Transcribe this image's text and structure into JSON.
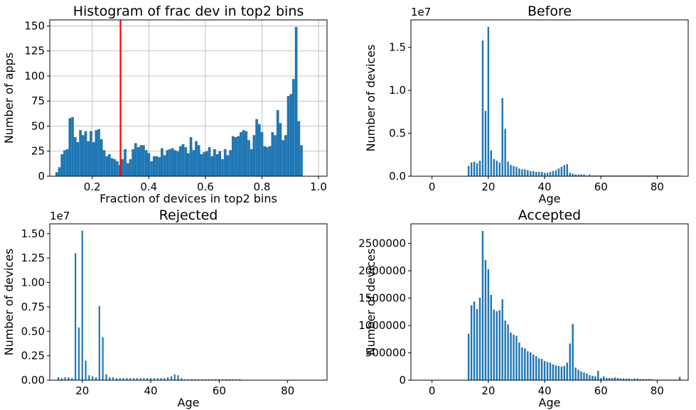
{
  "chart_data": [
    {
      "id": "hist",
      "type": "bar",
      "title": "Histogram of frac dev in top2 bins",
      "xlabel": "Fraction of devices in top2 bins",
      "ylabel": "Number of apps",
      "xlim": [
        0.05,
        1.03
      ],
      "ylim": [
        0,
        156
      ],
      "grid": true,
      "xticks": [
        0.2,
        0.4,
        0.6,
        0.8,
        1.0
      ],
      "xtick_labels": [
        "0.2",
        "0.4",
        "0.6",
        "0.8",
        "1.0"
      ],
      "yticks": [
        0,
        25,
        50,
        75,
        100,
        125,
        150
      ],
      "ytick_labels": [
        "0",
        "25",
        "50",
        "75",
        "100",
        "125",
        "150"
      ],
      "bin_start": 0.07,
      "bin_width": 0.0093,
      "values": [
        4,
        9,
        22,
        26,
        27,
        58,
        59,
        39,
        34,
        46,
        41,
        45,
        35,
        45,
        34,
        46,
        47,
        37,
        26,
        20,
        22,
        18,
        17,
        15,
        11,
        17,
        27,
        13,
        17,
        27,
        33,
        29,
        31,
        31,
        26,
        23,
        15,
        20,
        20,
        19,
        28,
        21,
        26,
        27,
        28,
        26,
        25,
        30,
        32,
        29,
        23,
        39,
        26,
        35,
        31,
        22,
        24,
        25,
        29,
        20,
        27,
        22,
        25,
        17,
        27,
        21,
        26,
        40,
        39,
        40,
        44,
        46,
        45,
        36,
        27,
        41,
        57,
        52,
        44,
        30,
        29,
        30,
        44,
        41,
        66,
        53,
        36,
        41,
        80,
        82,
        97,
        149,
        55,
        31
      ],
      "vline": {
        "x": 0.3,
        "color": "#ff0000"
      },
      "color": "#1f77b4"
    },
    {
      "id": "before",
      "type": "bar",
      "title": "Before",
      "xlabel": "Age",
      "ylabel": "Number of devices",
      "offset_text": "1e7",
      "xlim": [
        -7.5,
        91
      ],
      "ylim": [
        0,
        1.82
      ],
      "xticks": [
        0,
        20,
        40,
        60,
        80
      ],
      "xtick_labels": [
        "0",
        "20",
        "40",
        "60",
        "80"
      ],
      "yticks": [
        0.0,
        0.5,
        1.0,
        1.5
      ],
      "ytick_labels": [
        "0.0",
        "0.5",
        "1.0",
        "1.5"
      ],
      "x_start": 13,
      "x_step": 1,
      "values": [
        0.12,
        0.16,
        0.17,
        0.15,
        0.18,
        1.58,
        0.76,
        1.74,
        0.3,
        0.2,
        0.18,
        0.16,
        0.91,
        0.55,
        0.17,
        0.13,
        0.12,
        0.11,
        0.09,
        0.08,
        0.08,
        0.07,
        0.06,
        0.06,
        0.05,
        0.05,
        0.05,
        0.04,
        0.04,
        0.05,
        0.06,
        0.07,
        0.09,
        0.11,
        0.13,
        0.14,
        0.04,
        0.03,
        0.02,
        0.02,
        0.02,
        0.02,
        0.01,
        0.02,
        0.01,
        0.01,
        0.01,
        0.01,
        0.01,
        0.01,
        0.01,
        0.01,
        0.01,
        0.01,
        0.01,
        0.01,
        0.01,
        0.01,
        0.01,
        0.01,
        0.01,
        0.01,
        0.01,
        0.01,
        0.01,
        0.01,
        0.01,
        0.01,
        0.01,
        0.01,
        0.01,
        0.01,
        0.01,
        0.01,
        0.01,
        0.01
      ],
      "bar_width": 0.62,
      "color": "#1f77b4"
    },
    {
      "id": "rejected",
      "type": "bar",
      "title": "Rejected",
      "xlabel": "Age",
      "ylabel": "Number of devices",
      "offset_text": "1e7",
      "xlim": [
        10.5,
        91.5
      ],
      "ylim": [
        0,
        1.6
      ],
      "xticks": [
        20,
        40,
        60,
        80
      ],
      "xtick_labels": [
        "20",
        "40",
        "60",
        "80"
      ],
      "yticks": [
        0.0,
        0.25,
        0.5,
        0.75,
        1.0,
        1.25,
        1.5
      ],
      "ytick_labels": [
        "0.00",
        "0.25",
        "0.50",
        "0.75",
        "1.00",
        "1.25",
        "1.50"
      ],
      "x_start": 13,
      "x_step": 1,
      "values": [
        0.03,
        0.02,
        0.03,
        0.03,
        0.02,
        1.3,
        0.54,
        1.53,
        0.2,
        0.05,
        0.04,
        0.03,
        0.76,
        0.44,
        0.06,
        0.03,
        0.03,
        0.02,
        0.02,
        0.02,
        0.02,
        0.02,
        0.02,
        0.02,
        0.02,
        0.02,
        0.02,
        0.02,
        0.02,
        0.02,
        0.02,
        0.02,
        0.03,
        0.04,
        0.06,
        0.05,
        0.02,
        0.01,
        0.01,
        0.01,
        0.01,
        0.01,
        0.01,
        0.01,
        0.01,
        0.01,
        0.01,
        0.01,
        0.01,
        0.01,
        0.01,
        0.01,
        0.01,
        0.01
      ],
      "bar_width": 0.45,
      "color": "#1f77b4"
    },
    {
      "id": "accepted",
      "type": "bar",
      "title": "Accepted",
      "xlabel": "Age",
      "ylabel": "Number of devices",
      "xlim": [
        -7.5,
        91
      ],
      "ylim": [
        0,
        2860000
      ],
      "xticks": [
        0,
        20,
        40,
        60,
        80
      ],
      "xtick_labels": [
        "0",
        "20",
        "40",
        "60",
        "80"
      ],
      "yticks": [
        0,
        500000,
        1000000,
        1500000,
        2000000,
        2500000
      ],
      "ytick_labels": [
        "0",
        "500000",
        "1000000",
        "1500000",
        "2000000",
        "2500000"
      ],
      "x_start": 13,
      "x_step": 1,
      "values": [
        850000,
        1370000,
        1440000,
        1300000,
        1510000,
        2730000,
        2200000,
        2030000,
        1560000,
        1290000,
        1260000,
        1280000,
        1480000,
        1090000,
        1020000,
        870000,
        830000,
        810000,
        690000,
        600000,
        580000,
        530000,
        510000,
        470000,
        440000,
        400000,
        390000,
        350000,
        330000,
        320000,
        290000,
        270000,
        260000,
        250000,
        260000,
        320000,
        670000,
        1030000,
        230000,
        190000,
        160000,
        140000,
        120000,
        90000,
        80000,
        70000,
        170000,
        40000,
        70000,
        40000,
        40000,
        40000,
        50000,
        40000,
        30000,
        30000,
        30000,
        30000,
        20000,
        30000,
        30000,
        20000,
        20000,
        20000,
        20000,
        20000,
        10000,
        10000,
        10000,
        10000,
        10000,
        10000,
        10000,
        10000,
        10000,
        60000
      ],
      "bar_width": 0.62,
      "color": "#1f77b4"
    }
  ]
}
